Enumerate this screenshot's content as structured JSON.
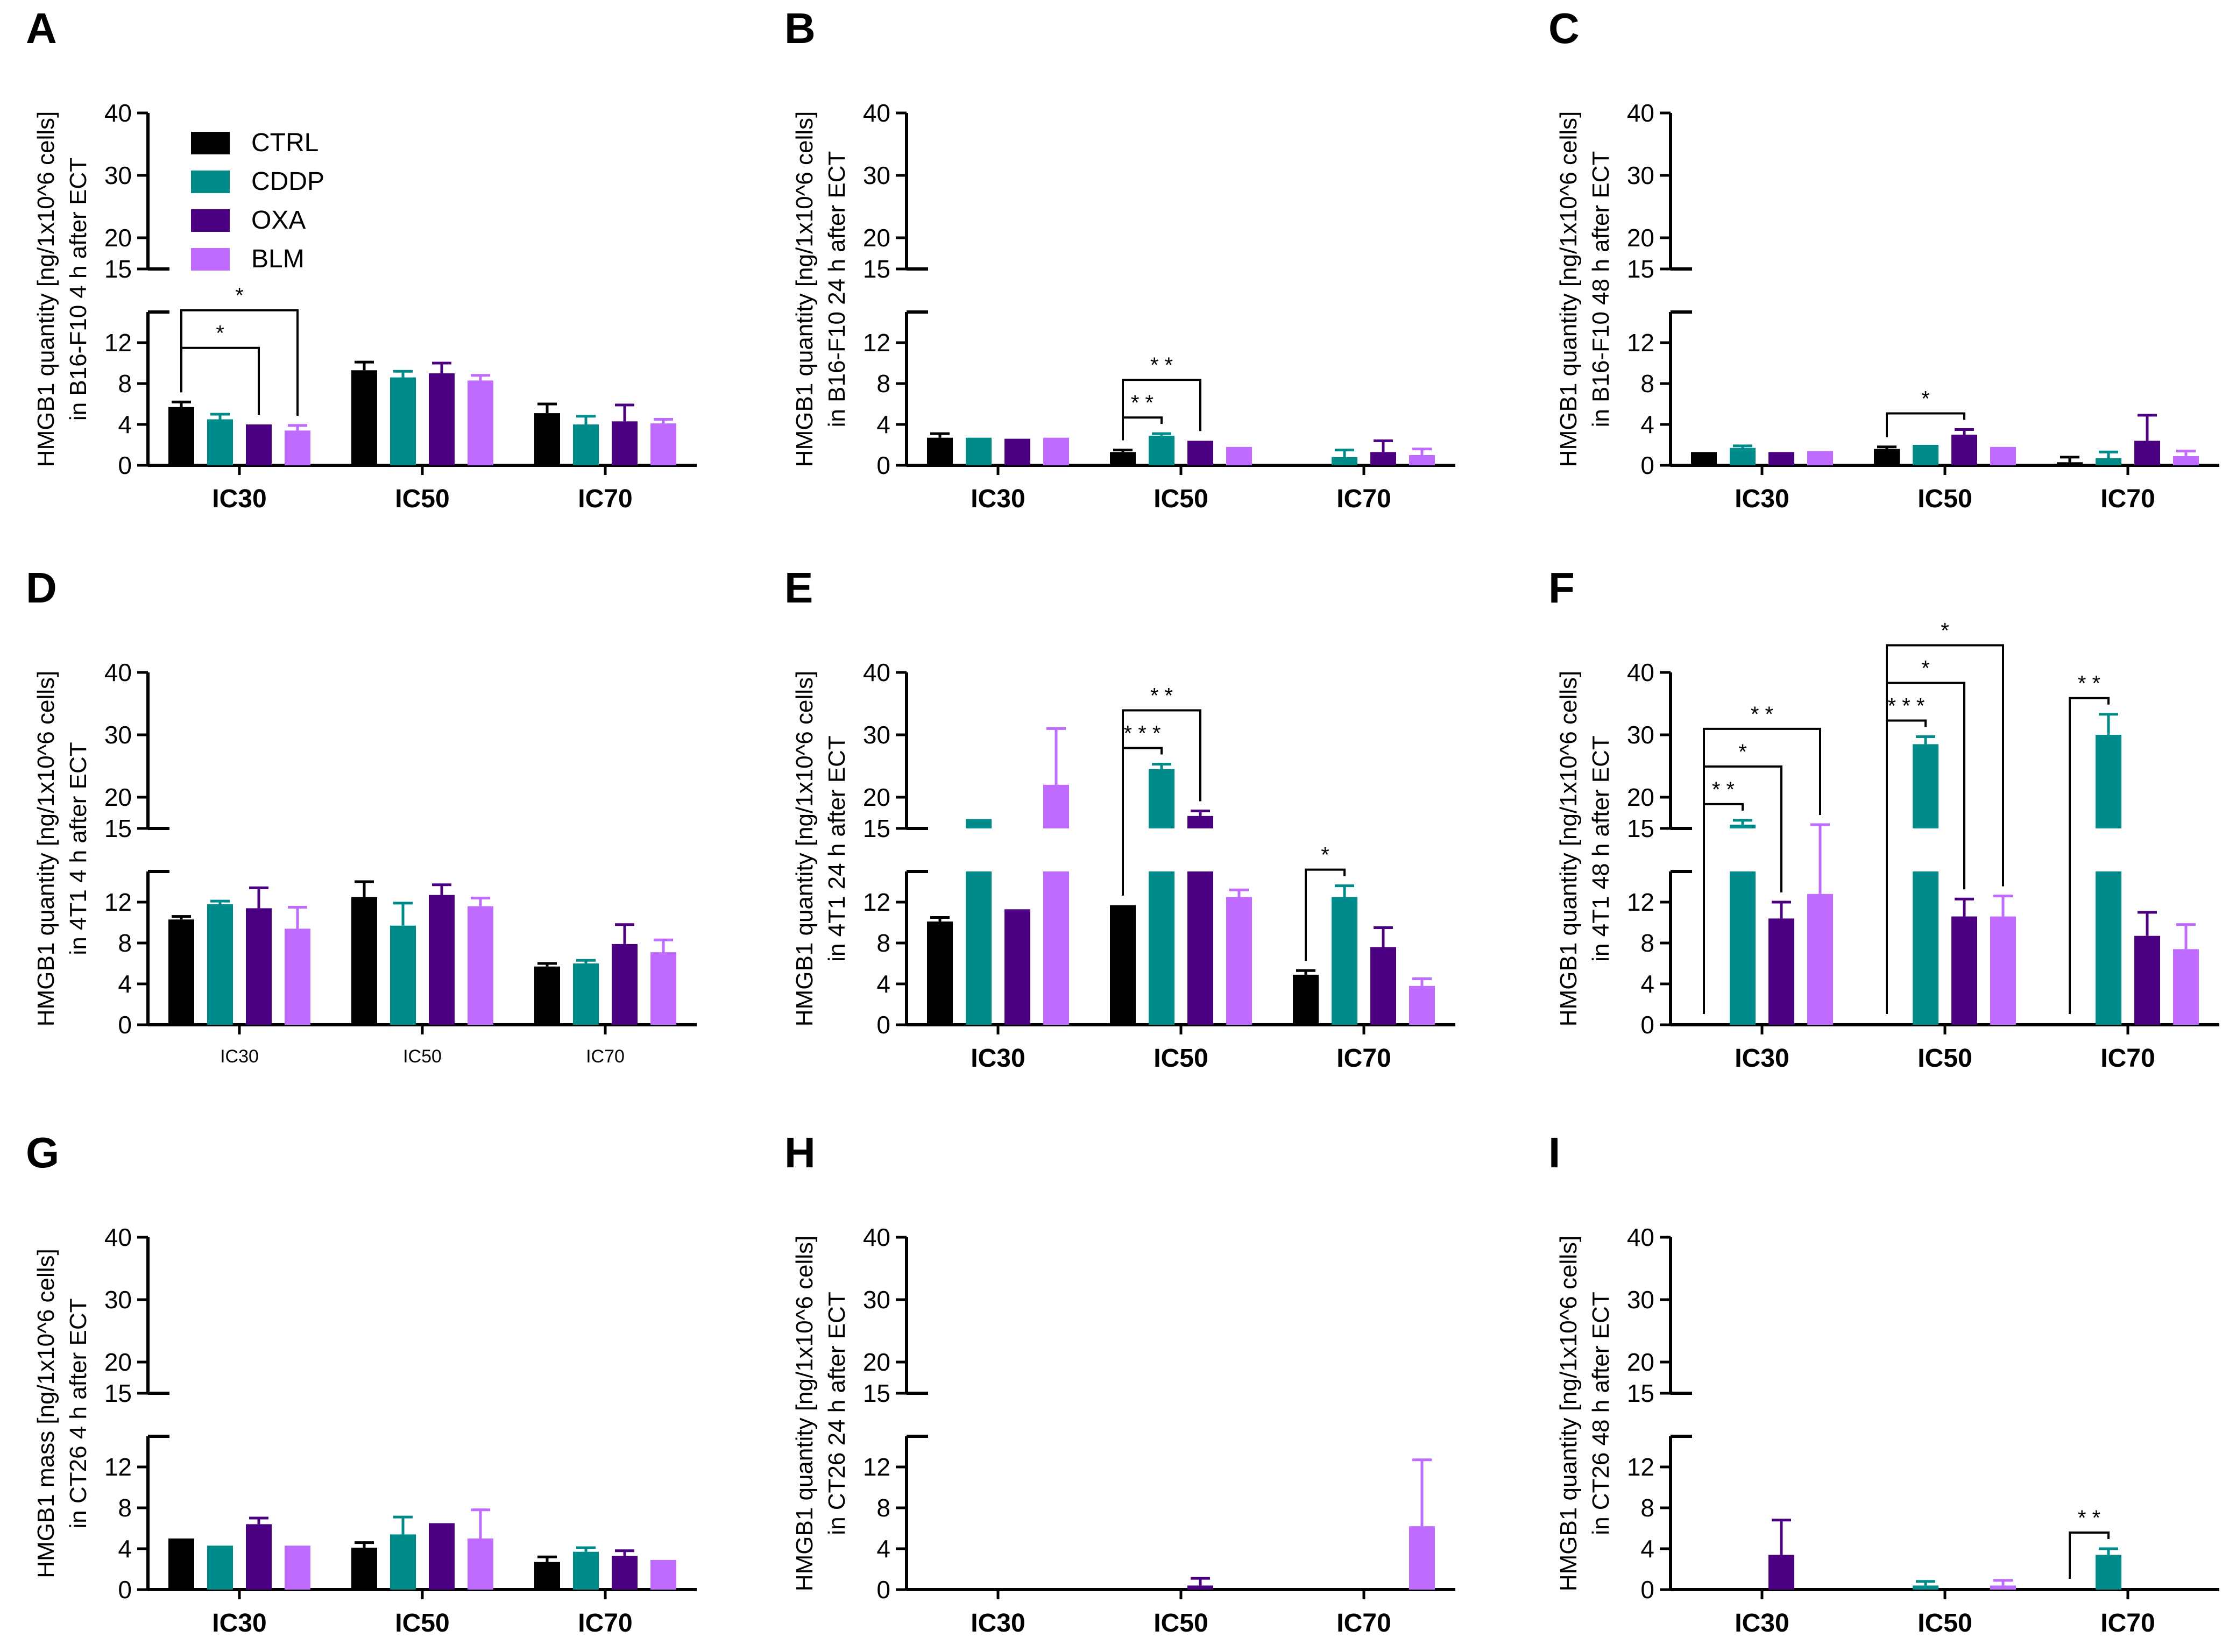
{
  "colors": {
    "CTRL": "#000000",
    "CDDP": "#008b8b",
    "OXA": "#4b0082",
    "BLM": "#bf6bff",
    "axis": "#000000"
  },
  "legend": {
    "entries": [
      {
        "name": "CTRL",
        "color": "#000000"
      },
      {
        "name": "CDDP",
        "color": "#008b8b"
      },
      {
        "name": "OXA",
        "color": "#4b0082"
      },
      {
        "name": "BLM",
        "color": "#bf6bff"
      }
    ]
  },
  "chart_data": [
    {
      "panel": "A",
      "type": "bar",
      "ylabel_line1": "HMGB1 quantity [ng/1x10^6 cells]",
      "ylabel_line2": "in B16-F10 4 h after ECT",
      "categories": [
        "IC30",
        "IC50",
        "IC70"
      ],
      "y_upper_ticks": [
        15,
        20,
        30,
        40
      ],
      "y_lower_ticks": [
        0,
        4,
        8,
        12
      ],
      "ylim": [
        0,
        40
      ],
      "broken_axis": [
        15,
        15
      ],
      "series": [
        {
          "name": "CTRL",
          "values": [
            5.7,
            9.3,
            5.1
          ],
          "errors": [
            0.5,
            0.8,
            0.9
          ]
        },
        {
          "name": "CDDP",
          "values": [
            4.5,
            8.6,
            4.0
          ],
          "errors": [
            0.5,
            0.6,
            0.8
          ]
        },
        {
          "name": "OXA",
          "values": [
            4.0,
            9.0,
            4.3
          ],
          "errors": [
            0.0,
            1.0,
            1.6
          ]
        },
        {
          "name": "BLM",
          "values": [
            3.4,
            8.3,
            4.1
          ],
          "errors": [
            0.5,
            0.5,
            0.4
          ]
        }
      ],
      "significance": [
        {
          "category": "IC30",
          "from": "CTRL",
          "to": "OXA",
          "level": 2,
          "label": "*"
        },
        {
          "category": "IC30",
          "from": "CTRL",
          "to": "BLM",
          "level": 3,
          "label": "*"
        }
      ]
    },
    {
      "panel": "B",
      "type": "bar",
      "ylabel_line1": "HMGB1 quantity [ng/1x10^6 cells]",
      "ylabel_line2": "in B16-F10 24 h after ECT",
      "categories": [
        "IC30",
        "IC50",
        "IC70"
      ],
      "y_upper_ticks": [
        15,
        20,
        30,
        40
      ],
      "y_lower_ticks": [
        0,
        4,
        8,
        12
      ],
      "ylim": [
        0,
        40
      ],
      "broken_axis": [
        15,
        15
      ],
      "series": [
        {
          "name": "CTRL",
          "values": [
            2.7,
            1.3,
            0
          ],
          "errors": [
            0.4,
            0.2,
            0
          ]
        },
        {
          "name": "CDDP",
          "values": [
            2.7,
            2.9,
            0.8
          ],
          "errors": [
            0,
            0.2,
            0.7
          ]
        },
        {
          "name": "OXA",
          "values": [
            2.6,
            2.4,
            1.3
          ],
          "errors": [
            0,
            0,
            1.1
          ]
        },
        {
          "name": "BLM",
          "values": [
            2.7,
            1.8,
            1.0
          ],
          "errors": [
            0,
            0,
            0.6
          ]
        }
      ],
      "significance": [
        {
          "category": "IC50",
          "from": "CTRL",
          "to": "CDDP",
          "level": 1,
          "label": "* *"
        },
        {
          "category": "IC50",
          "from": "CTRL",
          "to": "OXA",
          "level": 2,
          "label": "* *"
        }
      ]
    },
    {
      "panel": "C",
      "type": "bar",
      "ylabel_line1": "HMGB1 quantity [ng/1x10^6 cells]",
      "ylabel_line2": "in B16-F10 48 h after ECT",
      "categories": [
        "IC30",
        "IC50",
        "IC70"
      ],
      "y_upper_ticks": [
        15,
        20,
        30,
        40
      ],
      "y_lower_ticks": [
        0,
        4,
        8,
        12
      ],
      "ylim": [
        0,
        40
      ],
      "broken_axis": [
        15,
        15
      ],
      "series": [
        {
          "name": "CTRL",
          "values": [
            1.3,
            1.6,
            0.3
          ],
          "errors": [
            0,
            0.2,
            0.5
          ]
        },
        {
          "name": "CDDP",
          "values": [
            1.7,
            2.0,
            0.7
          ],
          "errors": [
            0.2,
            0,
            0.6
          ]
        },
        {
          "name": "OXA",
          "values": [
            1.3,
            3.0,
            2.4
          ],
          "errors": [
            0,
            0.5,
            2.5
          ]
        },
        {
          "name": "BLM",
          "values": [
            1.4,
            1.8,
            0.9
          ],
          "errors": [
            0,
            0,
            0.5
          ]
        }
      ],
      "significance": [
        {
          "category": "IC50",
          "from": "CTRL",
          "to": "OXA",
          "level": 1,
          "label": "*"
        }
      ]
    },
    {
      "panel": "D",
      "type": "bar",
      "ylabel_line1": "HMGB1 quantity [ng/1x10^6 cells]",
      "ylabel_line2": "in 4T1 4 h after ECT",
      "small_ticks": true,
      "categories": [
        "IC30",
        "IC50",
        "IC70"
      ],
      "y_upper_ticks": [
        15,
        20,
        30,
        40
      ],
      "y_lower_ticks": [
        0,
        4,
        8,
        12
      ],
      "ylim": [
        0,
        40
      ],
      "broken_axis": [
        15,
        15
      ],
      "series": [
        {
          "name": "CTRL",
          "values": [
            10.3,
            12.5,
            5.7
          ],
          "errors": [
            0.3,
            1.5,
            0.3
          ]
        },
        {
          "name": "CDDP",
          "values": [
            11.8,
            9.7,
            6.0
          ],
          "errors": [
            0.3,
            2.2,
            0.3
          ]
        },
        {
          "name": "OXA",
          "values": [
            11.4,
            12.7,
            7.9
          ],
          "errors": [
            2.0,
            1.0,
            1.9
          ]
        },
        {
          "name": "BLM",
          "values": [
            9.4,
            11.6,
            7.1
          ],
          "errors": [
            2.1,
            0.8,
            1.2
          ]
        }
      ],
      "significance": []
    },
    {
      "panel": "E",
      "type": "bar",
      "ylabel_line1": "HMGB1 quantity [ng/1x10^6 cells]",
      "ylabel_line2": "in 4T1 24 h after ECT",
      "categories": [
        "IC30",
        "IC50",
        "IC70"
      ],
      "y_upper_ticks": [
        15,
        20,
        30,
        40
      ],
      "y_lower_ticks": [
        0,
        4,
        8,
        12
      ],
      "ylim": [
        0,
        40
      ],
      "broken_axis": [
        15,
        15
      ],
      "series": [
        {
          "name": "CTRL",
          "values": [
            10.1,
            11.7,
            4.9
          ],
          "errors": [
            0.4,
            0,
            0.4
          ]
        },
        {
          "name": "CDDP",
          "values": [
            16.5,
            24.5,
            12.5
          ],
          "errors": [
            0,
            0.8,
            1.1
          ]
        },
        {
          "name": "OXA",
          "values": [
            11.3,
            17.0,
            7.6
          ],
          "errors": [
            0,
            0.8,
            1.9
          ]
        },
        {
          "name": "BLM",
          "values": [
            22.0,
            12.5,
            3.8
          ],
          "errors": [
            9.0,
            0.7,
            0.7
          ]
        }
      ],
      "significance": [
        {
          "category": "IC50",
          "from": "CTRL",
          "to": "CDDP",
          "level": 1,
          "label": "* * *"
        },
        {
          "category": "IC50",
          "from": "CTRL",
          "to": "OXA",
          "level": 2,
          "label": "* *"
        },
        {
          "category": "IC70",
          "from": "CTRL",
          "to": "CDDP",
          "level": 1,
          "label": "*"
        }
      ]
    },
    {
      "panel": "F",
      "type": "bar",
      "ylabel_line1": "HMGB1 quantity [ng/1x10^6 cells]",
      "ylabel_line2": "in 4T1 48 h after ECT",
      "categories": [
        "IC30",
        "IC50",
        "IC70"
      ],
      "y_upper_ticks": [
        15,
        20,
        30,
        40
      ],
      "y_lower_ticks": [
        0,
        4,
        8,
        12
      ],
      "ylim": [
        0,
        40
      ],
      "broken_axis": [
        15,
        15
      ],
      "series": [
        {
          "name": "CTRL",
          "values": [
            0,
            0,
            0
          ],
          "errors": [
            0,
            0,
            0
          ]
        },
        {
          "name": "CDDP",
          "values": [
            15.6,
            28.5,
            30.0
          ],
          "errors": [
            0.7,
            1.2,
            3.3
          ]
        },
        {
          "name": "OXA",
          "values": [
            10.4,
            10.6,
            8.7
          ],
          "errors": [
            1.6,
            1.7,
            2.3
          ]
        },
        {
          "name": "BLM",
          "values": [
            12.8,
            10.6,
            7.4
          ],
          "errors": [
            2.8,
            2.0,
            2.4
          ]
        }
      ],
      "significance": [
        {
          "category": "IC30",
          "from": "CTRL",
          "to": "CDDP",
          "level": 1,
          "label": "* *"
        },
        {
          "category": "IC30",
          "from": "CTRL",
          "to": "OXA",
          "level": 2,
          "label": "*"
        },
        {
          "category": "IC30",
          "from": "CTRL",
          "to": "BLM",
          "level": 3,
          "label": "* *"
        },
        {
          "category": "IC50",
          "from": "CTRL",
          "to": "CDDP",
          "level": 1,
          "label": "* * *"
        },
        {
          "category": "IC50",
          "from": "CTRL",
          "to": "OXA",
          "level": 2,
          "label": "*"
        },
        {
          "category": "IC50",
          "from": "CTRL",
          "to": "BLM",
          "level": 3,
          "label": "*"
        },
        {
          "category": "IC70",
          "from": "CTRL",
          "to": "CDDP",
          "level": 1,
          "label": "* *"
        }
      ]
    },
    {
      "panel": "G",
      "type": "bar",
      "ylabel_line1": "HMGB1 mass [ng/1x10^6 cells]",
      "ylabel_line2": "in CT26 4 h after ECT",
      "categories": [
        "IC30",
        "IC50",
        "IC70"
      ],
      "y_upper_ticks": [
        15,
        20,
        30,
        40
      ],
      "y_lower_ticks": [
        0,
        4,
        8,
        12
      ],
      "ylim": [
        0,
        40
      ],
      "broken_axis": [
        15,
        15
      ],
      "series": [
        {
          "name": "CTRL",
          "values": [
            5.0,
            4.1,
            2.7
          ],
          "errors": [
            0,
            0.5,
            0.5
          ]
        },
        {
          "name": "CDDP",
          "values": [
            4.3,
            5.4,
            3.7
          ],
          "errors": [
            0,
            1.7,
            0.4
          ]
        },
        {
          "name": "OXA",
          "values": [
            6.4,
            6.5,
            3.3
          ],
          "errors": [
            0.6,
            0,
            0.5
          ]
        },
        {
          "name": "BLM",
          "values": [
            4.3,
            5.0,
            2.9
          ],
          "errors": [
            0,
            2.8,
            0
          ]
        }
      ],
      "significance": []
    },
    {
      "panel": "H",
      "type": "bar",
      "ylabel_line1": "HMGB1 quantity [ng/1x10^6 cells]",
      "ylabel_line2": "in CT26 24 h after ECT",
      "categories": [
        "IC30",
        "IC50",
        "IC70"
      ],
      "y_upper_ticks": [
        15,
        20,
        30,
        40
      ],
      "y_lower_ticks": [
        0,
        4,
        8,
        12
      ],
      "ylim": [
        0,
        40
      ],
      "broken_axis": [
        15,
        15
      ],
      "series": [
        {
          "name": "CTRL",
          "values": [
            0,
            0,
            0
          ],
          "errors": [
            0,
            0,
            0
          ]
        },
        {
          "name": "CDDP",
          "values": [
            0,
            0,
            0
          ],
          "errors": [
            0,
            0,
            0
          ]
        },
        {
          "name": "OXA",
          "values": [
            0,
            0.4,
            0
          ],
          "errors": [
            0,
            0.7,
            0
          ]
        },
        {
          "name": "BLM",
          "values": [
            0,
            0,
            6.2
          ],
          "errors": [
            0,
            0,
            6.5
          ]
        }
      ],
      "significance": []
    },
    {
      "panel": "I",
      "type": "bar",
      "ylabel_line1": "HMGB1 quantity [ng/1x10^6 cells]",
      "ylabel_line2": "in CT26 48 h after ECT",
      "categories": [
        "IC30",
        "IC50",
        "IC70"
      ],
      "y_upper_ticks": [
        15,
        20,
        30,
        40
      ],
      "y_lower_ticks": [
        0,
        4,
        8,
        12
      ],
      "ylim": [
        0,
        40
      ],
      "broken_axis": [
        15,
        15
      ],
      "series": [
        {
          "name": "CTRL",
          "values": [
            0,
            0,
            0
          ],
          "errors": [
            0,
            0,
            0
          ]
        },
        {
          "name": "CDDP",
          "values": [
            0,
            0.4,
            3.4
          ],
          "errors": [
            0,
            0.4,
            0.6
          ]
        },
        {
          "name": "OXA",
          "values": [
            3.4,
            0,
            0
          ],
          "errors": [
            3.4,
            0,
            0
          ]
        },
        {
          "name": "BLM",
          "values": [
            0,
            0.4,
            0
          ],
          "errors": [
            0,
            0.5,
            0
          ]
        }
      ],
      "significance": [
        {
          "category": "IC70",
          "from": "CTRL",
          "to": "CDDP",
          "level": 1,
          "label": "* *"
        }
      ]
    }
  ]
}
